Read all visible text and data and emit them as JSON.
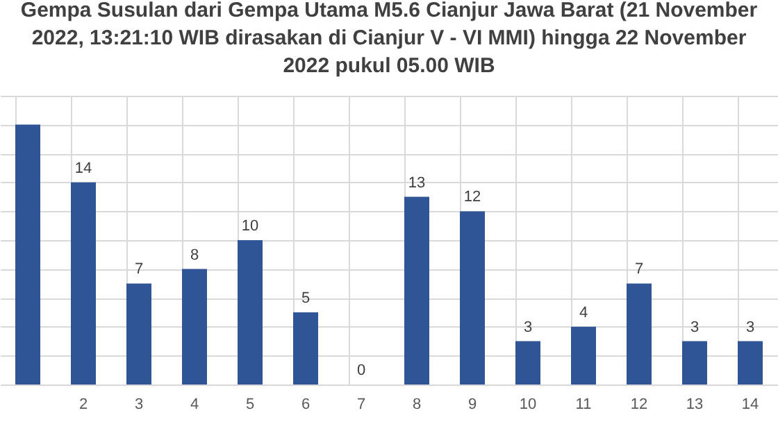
{
  "chart_data": {
    "type": "bar",
    "title": "Gempa Susulan dari Gempa Utama M5.6 Cianjur Jawa Barat (21 November 2022, 13:21:10 WIB dirasakan di Cianjur V - VI MMI) hingga 22 November 2022 pukul 05.00 WIB",
    "categories": [
      null,
      "2",
      "3",
      "4",
      "5",
      "6",
      "7",
      "8",
      "9",
      "10",
      "11",
      "12",
      "13",
      "14"
    ],
    "values": [
      18,
      14,
      7,
      8,
      10,
      5,
      0,
      13,
      12,
      3,
      4,
      7,
      3,
      3
    ],
    "value_labels": [
      null,
      "14",
      "7",
      "8",
      "10",
      "5",
      "0",
      "13",
      "12",
      "3",
      "4",
      "7",
      "3",
      "3"
    ],
    "color": "#2f5597",
    "ylim": [
      0,
      20
    ],
    "grid": true,
    "tick_labels": "x"
  }
}
